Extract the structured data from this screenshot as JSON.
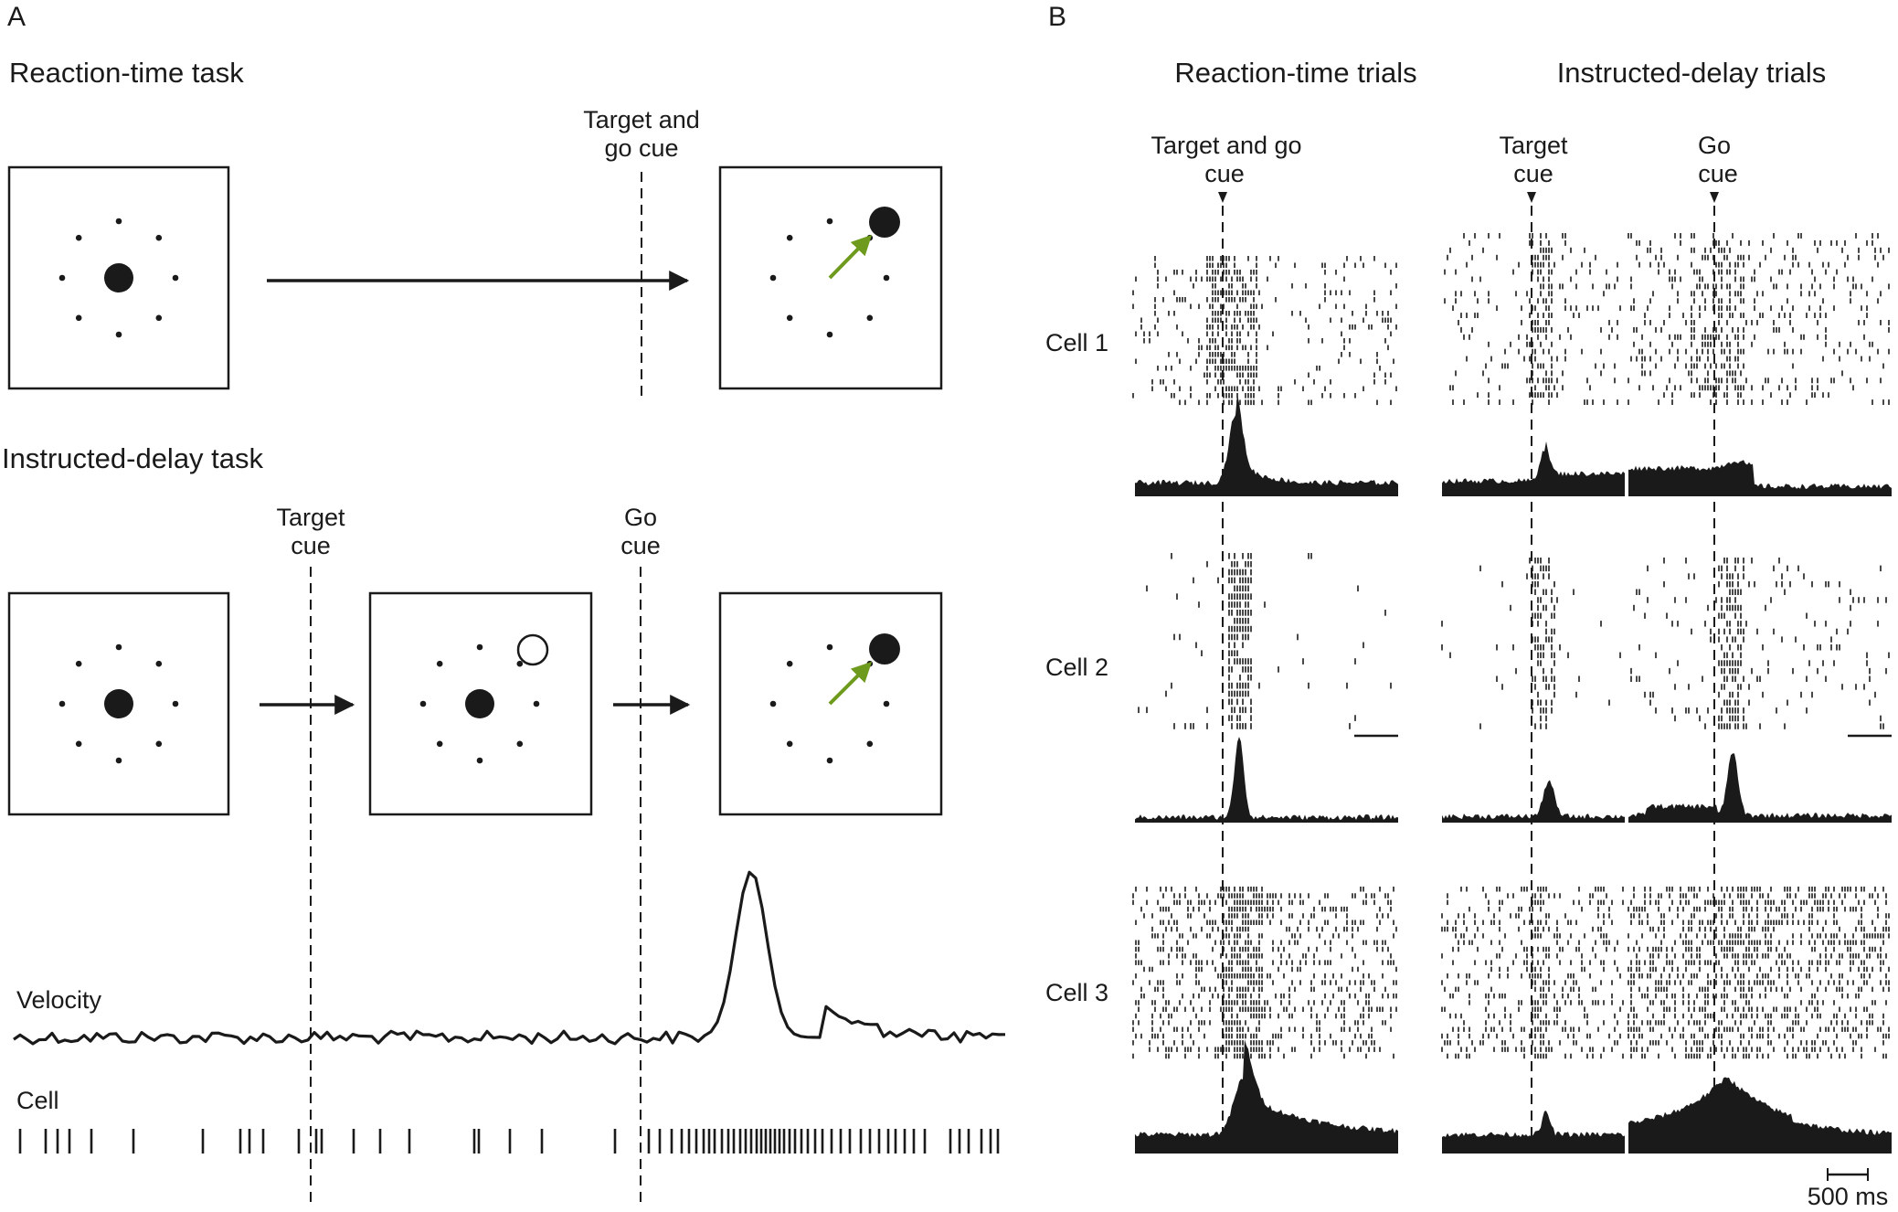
{
  "panels": {
    "a": "A",
    "b": "B"
  },
  "panel_a": {
    "reaction_time_title": "Reaction-time task",
    "rt_cue_line1": "Target and",
    "rt_cue_line2": "go cue",
    "instructed_delay_title": "Instructed-delay task",
    "target_cue_line1": "Target",
    "target_cue_line2": "cue",
    "go_cue_line1": "Go",
    "go_cue_line2": "cue",
    "velocity_label": "Velocity",
    "cell_label": "Cell",
    "arrow_color": "#6e9a1e"
  },
  "panel_b": {
    "rt_trials_title": "Reaction-time trials",
    "id_trials_title": "Instructed-delay trials",
    "rt_cue_line1": "Target and go",
    "rt_cue_line2": "cue",
    "target_cue_line1": "Target",
    "target_cue_line2": "cue",
    "go_cue_line1": "Go",
    "go_cue_line2": "cue",
    "cells": [
      "Cell 1",
      "Cell 2",
      "Cell 3"
    ],
    "scale_bar": "500 ms"
  }
}
